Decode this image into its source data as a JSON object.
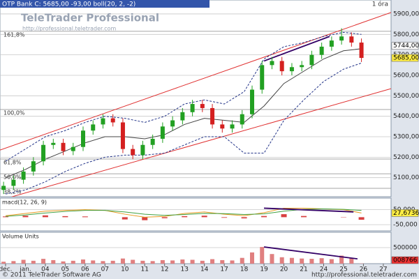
{
  "header": {
    "title": "OTP Bank C: 5685,00 -93,00 boll(20, 2, -2)",
    "timeframe": "1 óra",
    "watermark": "TeleTrader Professional",
    "watermark_url": "http://professional.teletrader.com"
  },
  "footer": {
    "left": "© 2011 TeleTrader Software AG",
    "right": "http://professional.teletrader.com"
  },
  "chart_data": [
    {
      "type": "candlestick",
      "xlim": [
        -0.28,
        19.39
      ],
      "xticks": [
        {
          "value": 0,
          "label": "dec."
        },
        {
          "value": 1,
          "label": "jan."
        },
        {
          "value": 2,
          "label": "04"
        },
        {
          "value": 3,
          "label": "05"
        },
        {
          "value": 4,
          "label": "06"
        },
        {
          "value": 5,
          "label": "07"
        },
        {
          "value": 6,
          "label": "10"
        },
        {
          "value": 7,
          "label": "11"
        },
        {
          "value": 8,
          "label": "12"
        },
        {
          "value": 9,
          "label": "13"
        },
        {
          "value": 10,
          "label": "14"
        },
        {
          "value": 11,
          "label": "17"
        },
        {
          "value": 12,
          "label": "18"
        },
        {
          "value": 13,
          "label": "19"
        },
        {
          "value": 14,
          "label": "20"
        },
        {
          "value": 15,
          "label": "21"
        },
        {
          "value": 16,
          "label": "24"
        },
        {
          "value": 17,
          "label": "25"
        },
        {
          "value": 18,
          "label": "26"
        },
        {
          "value": 19,
          "label": "27"
        }
      ],
      "ylim": [
        5007,
        5968
      ],
      "yticks": [
        {
          "value": 5100,
          "label": "5100,00"
        },
        {
          "value": 5200,
          "label": "5200,00"
        },
        {
          "value": 5300,
          "label": "5300,00"
        },
        {
          "value": 5400,
          "label": "5400,00"
        },
        {
          "value": 5500,
          "label": "5500,00"
        },
        {
          "value": 5600,
          "label": "5600,00"
        },
        {
          "value": 5700,
          "label": "5700,00"
        },
        {
          "value": 5800,
          "label": "5800,00"
        },
        {
          "value": 5900,
          "label": "5900,00"
        }
      ],
      "grid": true,
      "up_color": "#22a022",
      "down_color": "#d42020",
      "x": [
        -0.1,
        0.4,
        0.9,
        1.4,
        1.9,
        2.4,
        2.9,
        3.4,
        3.9,
        4.4,
        4.9,
        5.4,
        5.9,
        6.4,
        6.9,
        7.4,
        7.9,
        8.4,
        8.9,
        9.4,
        9.9,
        10.4,
        10.9,
        11.4,
        11.9,
        12.4,
        12.9,
        13.4,
        13.9,
        14.4,
        14.9,
        15.4,
        15.9,
        16.4,
        16.9,
        17.4,
        17.9
      ],
      "open": [
        5040,
        5060,
        5090,
        5130,
        5180,
        5260,
        5270,
        5230,
        5250,
        5330,
        5360,
        5390,
        5370,
        5240,
        5210,
        5260,
        5290,
        5350,
        5380,
        5420,
        5460,
        5440,
        5360,
        5340,
        5360,
        5410,
        5530,
        5650,
        5670,
        5620,
        5640,
        5650,
        5700,
        5740,
        5770,
        5790,
        5760
      ],
      "high": [
        5080,
        5110,
        5150,
        5200,
        5280,
        5290,
        5290,
        5270,
        5350,
        5380,
        5410,
        5410,
        5390,
        5260,
        5280,
        5310,
        5370,
        5400,
        5440,
        5480,
        5480,
        5460,
        5380,
        5380,
        5430,
        5550,
        5670,
        5690,
        5690,
        5660,
        5670,
        5720,
        5760,
        5790,
        5830,
        5810,
        5780
      ],
      "low": [
        5020,
        5040,
        5070,
        5110,
        5160,
        5240,
        5210,
        5210,
        5230,
        5310,
        5340,
        5350,
        5220,
        5190,
        5190,
        5240,
        5270,
        5330,
        5360,
        5400,
        5420,
        5340,
        5320,
        5320,
        5340,
        5390,
        5510,
        5630,
        5600,
        5600,
        5620,
        5630,
        5680,
        5720,
        5750,
        5740,
        5665
      ],
      "close": [
        5060,
        5090,
        5130,
        5180,
        5260,
        5270,
        5230,
        5250,
        5330,
        5360,
        5390,
        5370,
        5240,
        5210,
        5260,
        5290,
        5350,
        5380,
        5420,
        5460,
        5440,
        5360,
        5340,
        5360,
        5410,
        5530,
        5650,
        5670,
        5620,
        5640,
        5650,
        5700,
        5740,
        5770,
        5790,
        5760,
        5685
      ],
      "bands": {
        "x": [
          0,
          1,
          2,
          3,
          4,
          5,
          6,
          7,
          8,
          9,
          10,
          11,
          12,
          13,
          14,
          15,
          16,
          17,
          17.9
        ],
        "series": [
          {
            "color": "#444444",
            "values": [
              5100,
              5140,
              5190,
              5230,
              5270,
              5300,
              5300,
              5290,
              5310,
              5360,
              5390,
              5380,
              5370,
              5450,
              5560,
              5620,
              5680,
              5720,
              5730
            ]
          },
          {
            "color": "#223388",
            "values": [
              5180,
              5240,
              5300,
              5330,
              5370,
              5400,
              5390,
              5370,
              5400,
              5460,
              5480,
              5460,
              5520,
              5680,
              5740,
              5760,
              5790,
              5810,
              5800
            ]
          },
          {
            "color": "#223388",
            "values": [
              5020,
              5040,
              5080,
              5130,
              5170,
              5200,
              5210,
              5210,
              5220,
              5260,
              5300,
              5300,
              5220,
              5220,
              5380,
              5480,
              5570,
              5630,
              5660
            ]
          }
        ]
      },
      "trend_lines": [
        {
          "color": "#e03030",
          "x": [
            -0.28,
            19.39
          ],
          "y": [
            5235,
            5907
          ]
        },
        {
          "color": "#e03030",
          "x": [
            -0.28,
            19.39
          ],
          "y": [
            4990,
            5535
          ]
        },
        {
          "color": "#330066",
          "x": [
            13,
            16.3
          ],
          "y": [
            5670,
            5790
          ]
        }
      ],
      "levels": [
        {
          "value": 5815,
          "label": "161,8%"
        },
        {
          "value": 5433,
          "label": "100,0%"
        },
        {
          "value": 5191,
          "label": "61,8%"
        },
        {
          "value": 5119,
          "label": "50,0%"
        },
        {
          "value": 5048,
          "label": "38,2%"
        }
      ],
      "markers": [
        {
          "value": 5744,
          "label": "5744,00"
        },
        {
          "value": 5685,
          "label": "5685,00"
        }
      ]
    },
    {
      "type": "macd",
      "title": "macd(12, 26, 9)",
      "ylim": [
        -91,
        127
      ],
      "yticks": [
        {
          "value": 50,
          "label": "50,000"
        },
        {
          "value": -50,
          "label": "-50,000"
        }
      ],
      "x": [
        0,
        1,
        2,
        3,
        4,
        5,
        6,
        7,
        8,
        9,
        10,
        11,
        12,
        13,
        14,
        15,
        16,
        17,
        17.9
      ],
      "series": [
        {
          "color": "#e89a20",
          "values": [
            10,
            25,
            40,
            45,
            50,
            45,
            20,
            0,
            5,
            25,
            35,
            20,
            10,
            30,
            60,
            60,
            55,
            50,
            28
          ]
        },
        {
          "color": "#40a040",
          "values": [
            5,
            15,
            28,
            38,
            45,
            45,
            35,
            20,
            12,
            18,
            25,
            24,
            18,
            22,
            40,
            52,
            55,
            52,
            45
          ]
        }
      ],
      "histogram": {
        "values": [
          5,
          10,
          12,
          7,
          5,
          0,
          -15,
          -20,
          -7,
          7,
          10,
          -4,
          -8,
          8,
          20,
          8,
          0,
          -2,
          -17
        ],
        "color": "#d84040"
      },
      "trend_lines": [
        {
          "color": "#330066",
          "x": [
            13,
            17.5
          ],
          "y": [
            60,
            35
          ]
        }
      ],
      "markers": [
        {
          "value": 27.6736,
          "label": "27,6736"
        }
      ]
    },
    {
      "type": "volume",
      "title": "Volume Units",
      "ylim": [
        0,
        978000
      ],
      "color": "#e08080",
      "yticks": [
        {
          "value": 500000,
          "label": "500000"
        }
      ],
      "x": [
        -0.1,
        0.4,
        0.9,
        1.4,
        1.9,
        2.4,
        2.9,
        3.4,
        3.9,
        4.4,
        4.9,
        5.4,
        5.9,
        6.4,
        6.9,
        7.4,
        7.9,
        8.4,
        8.9,
        9.4,
        9.9,
        10.4,
        10.9,
        11.4,
        11.9,
        12.4,
        12.9,
        13.4,
        13.9,
        14.4,
        14.9,
        15.4,
        15.9,
        16.4,
        16.9,
        17.4,
        17.9
      ],
      "values": [
        60000,
        80000,
        120000,
        90000,
        150000,
        110000,
        70000,
        90000,
        130000,
        100000,
        80000,
        90000,
        160000,
        120000,
        90000,
        80000,
        110000,
        100000,
        130000,
        120000,
        90000,
        140000,
        110000,
        100000,
        180000,
        350000,
        520000,
        300000,
        200000,
        180000,
        160000,
        150000,
        170000,
        140000,
        250000,
        180000,
        8766
      ],
      "trend_lines": [
        {
          "color": "#330066",
          "x": [
            13,
            17.7
          ],
          "y": [
            520000,
            150000
          ]
        }
      ],
      "markers": [
        {
          "value": 8766,
          "label": "008766"
        }
      ]
    }
  ]
}
